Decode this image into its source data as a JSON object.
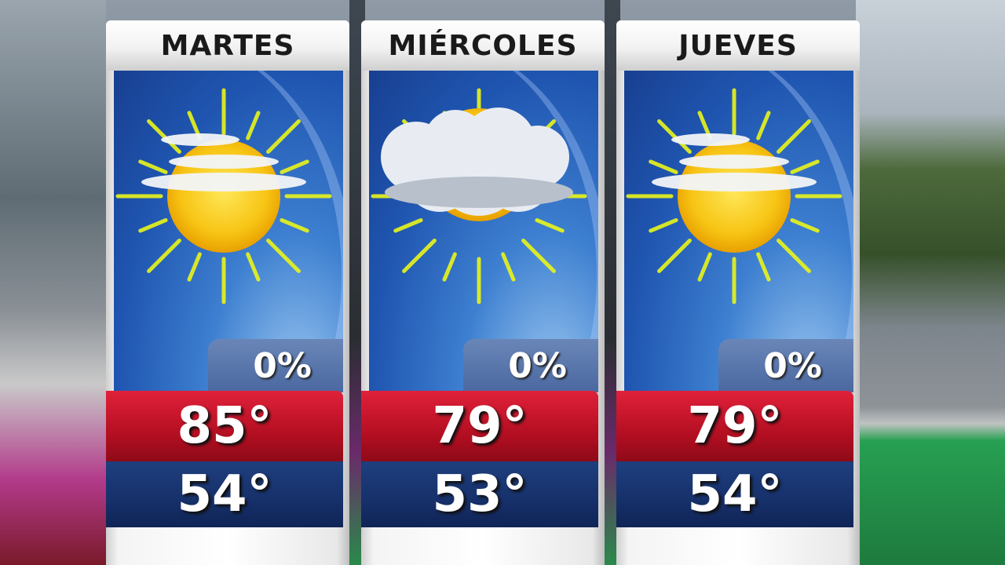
{
  "forecast": [
    {
      "day": "MARTES",
      "icon": "partly-cloudy-sun-icon",
      "precip": "0%",
      "high": "85°",
      "low": "54°"
    },
    {
      "day": "MIÉRCOLES",
      "icon": "mostly-cloudy-sun-icon",
      "precip": "0%",
      "high": "79°",
      "low": "53°"
    },
    {
      "day": "JUEVES",
      "icon": "partly-cloudy-sun-icon",
      "precip": "0%",
      "high": "79°",
      "low": "54°"
    }
  ],
  "colors": {
    "high_band": "#c8142a",
    "low_band": "#16306a",
    "sky": "#2a63c0"
  }
}
